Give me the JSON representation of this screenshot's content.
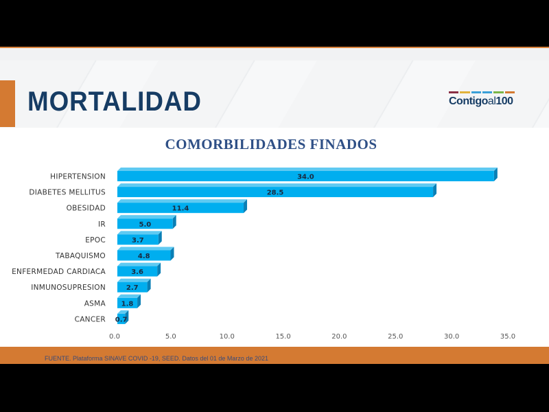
{
  "header": {
    "title": "MORTALIDAD",
    "logo": {
      "text_main": "Contigo",
      "text_al": "al",
      "text_num": "100",
      "stripe_colors": [
        "#8a2f45",
        "#e2b33c",
        "#3aa0d8",
        "#3aa0d8",
        "#7ab648",
        "#d47a32"
      ]
    }
  },
  "colors": {
    "bar": "#00aeef",
    "bar_side": "#0a7fb5",
    "title": "#163c64",
    "accent": "#d47a32"
  },
  "chart_data": {
    "type": "bar",
    "orientation": "horizontal",
    "title": "COMORBILIDADES FINADOS",
    "categories": [
      "HIPERTENSION",
      "DIABETES MELLITUS",
      "OBESIDAD",
      "IR",
      "EPOC",
      "TABAQUISMO",
      "ENFERMEDAD CARDIACA",
      "INMUNOSUPRESION",
      "ASMA",
      "CANCER"
    ],
    "values": [
      34.0,
      28.5,
      11.4,
      5.0,
      3.7,
      4.8,
      3.6,
      2.7,
      1.8,
      0.7
    ],
    "xlim": [
      0,
      35
    ],
    "xticks": [
      "0.0",
      "5.0",
      "10.0",
      "15.0",
      "20.0",
      "25.0",
      "30.0",
      "35.0"
    ],
    "grid": false,
    "data_labels": true
  },
  "footer": {
    "source": "FUENTE. Plataforma SINAVE COVID -19, SEED. Datos del 01 de Marzo de 2021"
  }
}
